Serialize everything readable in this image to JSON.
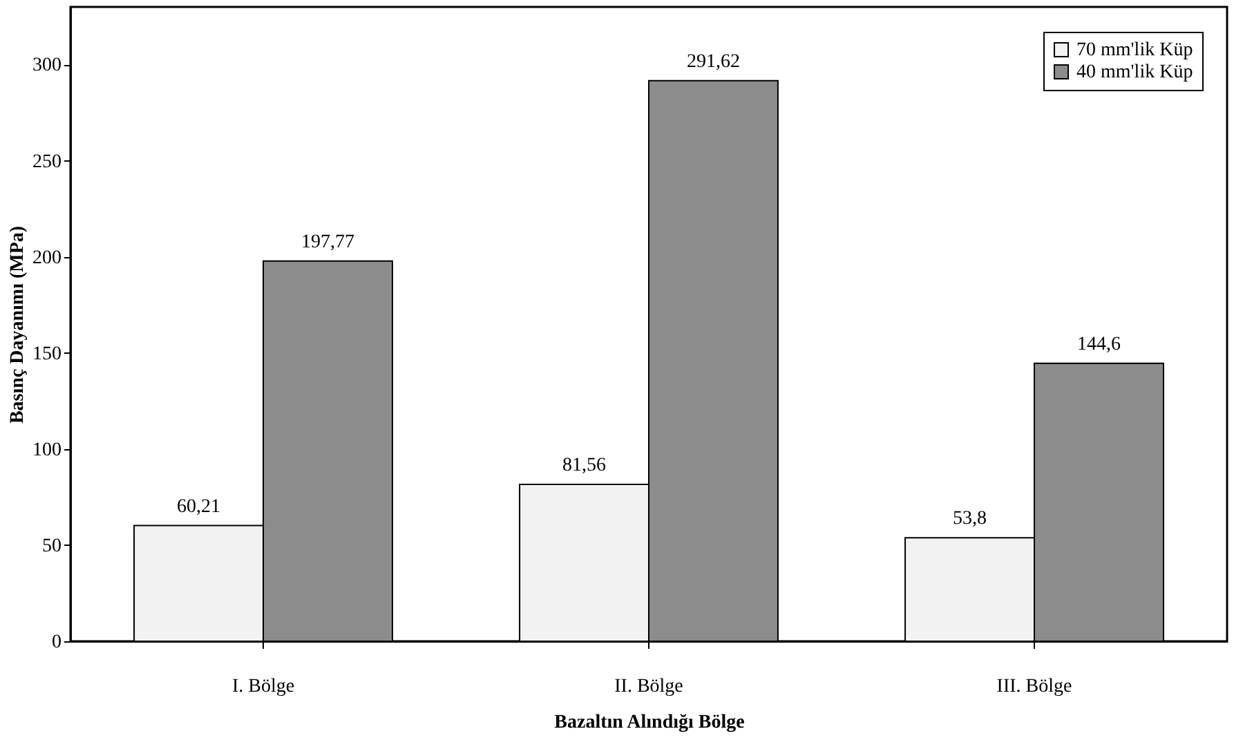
{
  "chart_data": {
    "type": "bar",
    "xlabel": "Bazaltın Alındığı Bölge",
    "ylabel": "Basınç Dayanımı (MPa)",
    "categories": [
      "I. Bölge",
      "II. Bölge",
      "III. Bölge"
    ],
    "series": [
      {
        "name": "70 mm'lik Küp",
        "color": "#f2f2f2",
        "values": [
          60.21,
          81.56,
          53.8
        ],
        "value_labels": [
          "60,21",
          "81,56",
          "53,8"
        ]
      },
      {
        "name": "40 mm'lik Küp",
        "color": "#8c8c8c",
        "values": [
          197.77,
          291.62,
          144.6
        ],
        "value_labels": [
          "197,77",
          "291,62",
          "144,6"
        ]
      }
    ],
    "ylim": [
      0,
      330
    ],
    "yticks": [
      0,
      50,
      100,
      150,
      200,
      250,
      300
    ],
    "grid": false,
    "legend": "top right"
  }
}
